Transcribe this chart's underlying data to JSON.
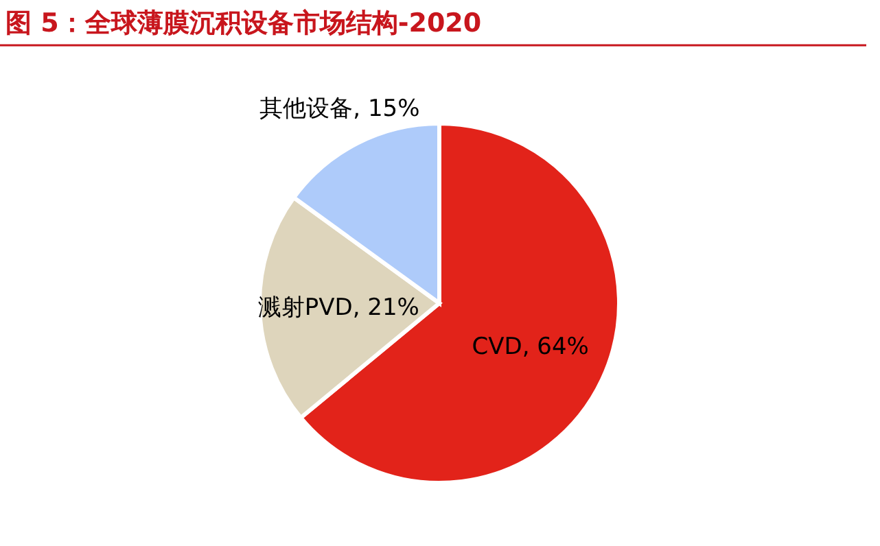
{
  "chart_data": {
    "type": "pie",
    "title": "图 5：全球薄膜沉积设备市场结构-2020",
    "categories": [
      "CVD",
      "溅射PVD",
      "其他设备"
    ],
    "values": [
      64,
      21,
      15
    ],
    "value_labels": [
      "64%",
      "21%",
      "15%"
    ],
    "colors": [
      "#e2231a",
      "#ded5bc",
      "#aecbfa"
    ]
  }
}
